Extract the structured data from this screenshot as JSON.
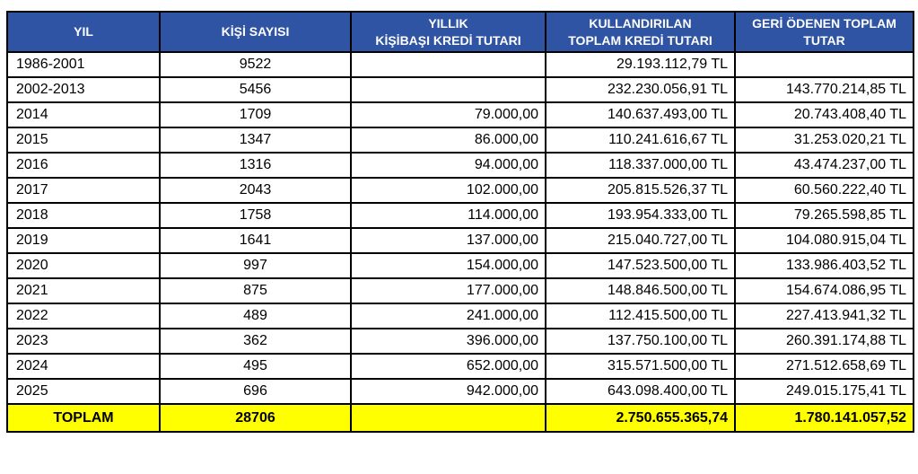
{
  "colors": {
    "header_bg": "#2F54A3",
    "header_text": "#FFFFFF",
    "total_row_bg": "#FFFF00",
    "border": "#000000",
    "cell_text": "#000000"
  },
  "chart_data": {
    "type": "table",
    "title": "",
    "columns": [
      [
        "YIL"
      ],
      [
        "KİŞİ SAYISI"
      ],
      [
        "YILLIK",
        "KİŞİBAŞI KREDİ TUTARI"
      ],
      [
        "KULLANDIRILAN",
        "TOPLAM KREDİ TUTARI"
      ],
      [
        "GERİ ÖDENEN TOPLAM",
        "TUTAR"
      ]
    ],
    "rows": [
      [
        "1986-2001",
        "9522",
        "",
        "29.193.112,79 TL",
        ""
      ],
      [
        "2002-2013",
        "5456",
        "",
        "232.230.056,91 TL",
        "143.770.214,85 TL"
      ],
      [
        "2014",
        "1709",
        "79.000,00",
        "140.637.493,00 TL",
        "20.743.408,40 TL"
      ],
      [
        "2015",
        "1347",
        "86.000,00",
        "110.241.616,67 TL",
        "31.253.020,21 TL"
      ],
      [
        "2016",
        "1316",
        "94.000,00",
        "118.337.000,00 TL",
        "43.474.237,00 TL"
      ],
      [
        "2017",
        "2043",
        "102.000,00",
        "205.815.526,37 TL",
        "60.560.222,40 TL"
      ],
      [
        "2018",
        "1758",
        "114.000,00",
        "193.954.333,00 TL",
        "79.265.598,85 TL"
      ],
      [
        "2019",
        "1641",
        "137.000,00",
        "215.040.727,00 TL",
        "104.080.915,04 TL"
      ],
      [
        "2020",
        "997",
        "154.000,00",
        "147.523.500,00 TL",
        "133.986.403,52 TL"
      ],
      [
        "2021",
        "875",
        "177.000,00",
        "148.846.500,00 TL",
        "154.674.086,95 TL"
      ],
      [
        "2022",
        "489",
        "241.000,00",
        "112.415.500,00 TL",
        "227.413.941,32 TL"
      ],
      [
        "2023",
        "362",
        "396.000,00",
        "137.750.100,00 TL",
        "260.391.174,88 TL"
      ],
      [
        "2024",
        "495",
        "652.000,00",
        "315.571.500,00 TL",
        "271.512.658,69 TL"
      ],
      [
        "2025",
        "696",
        "942.000,00",
        "643.098.400,00 TL",
        "249.015.175,41 TL"
      ]
    ],
    "total_row": [
      "TOPLAM",
      "28706",
      "",
      "2.750.655.365,74",
      "1.780.141.057,52"
    ]
  }
}
